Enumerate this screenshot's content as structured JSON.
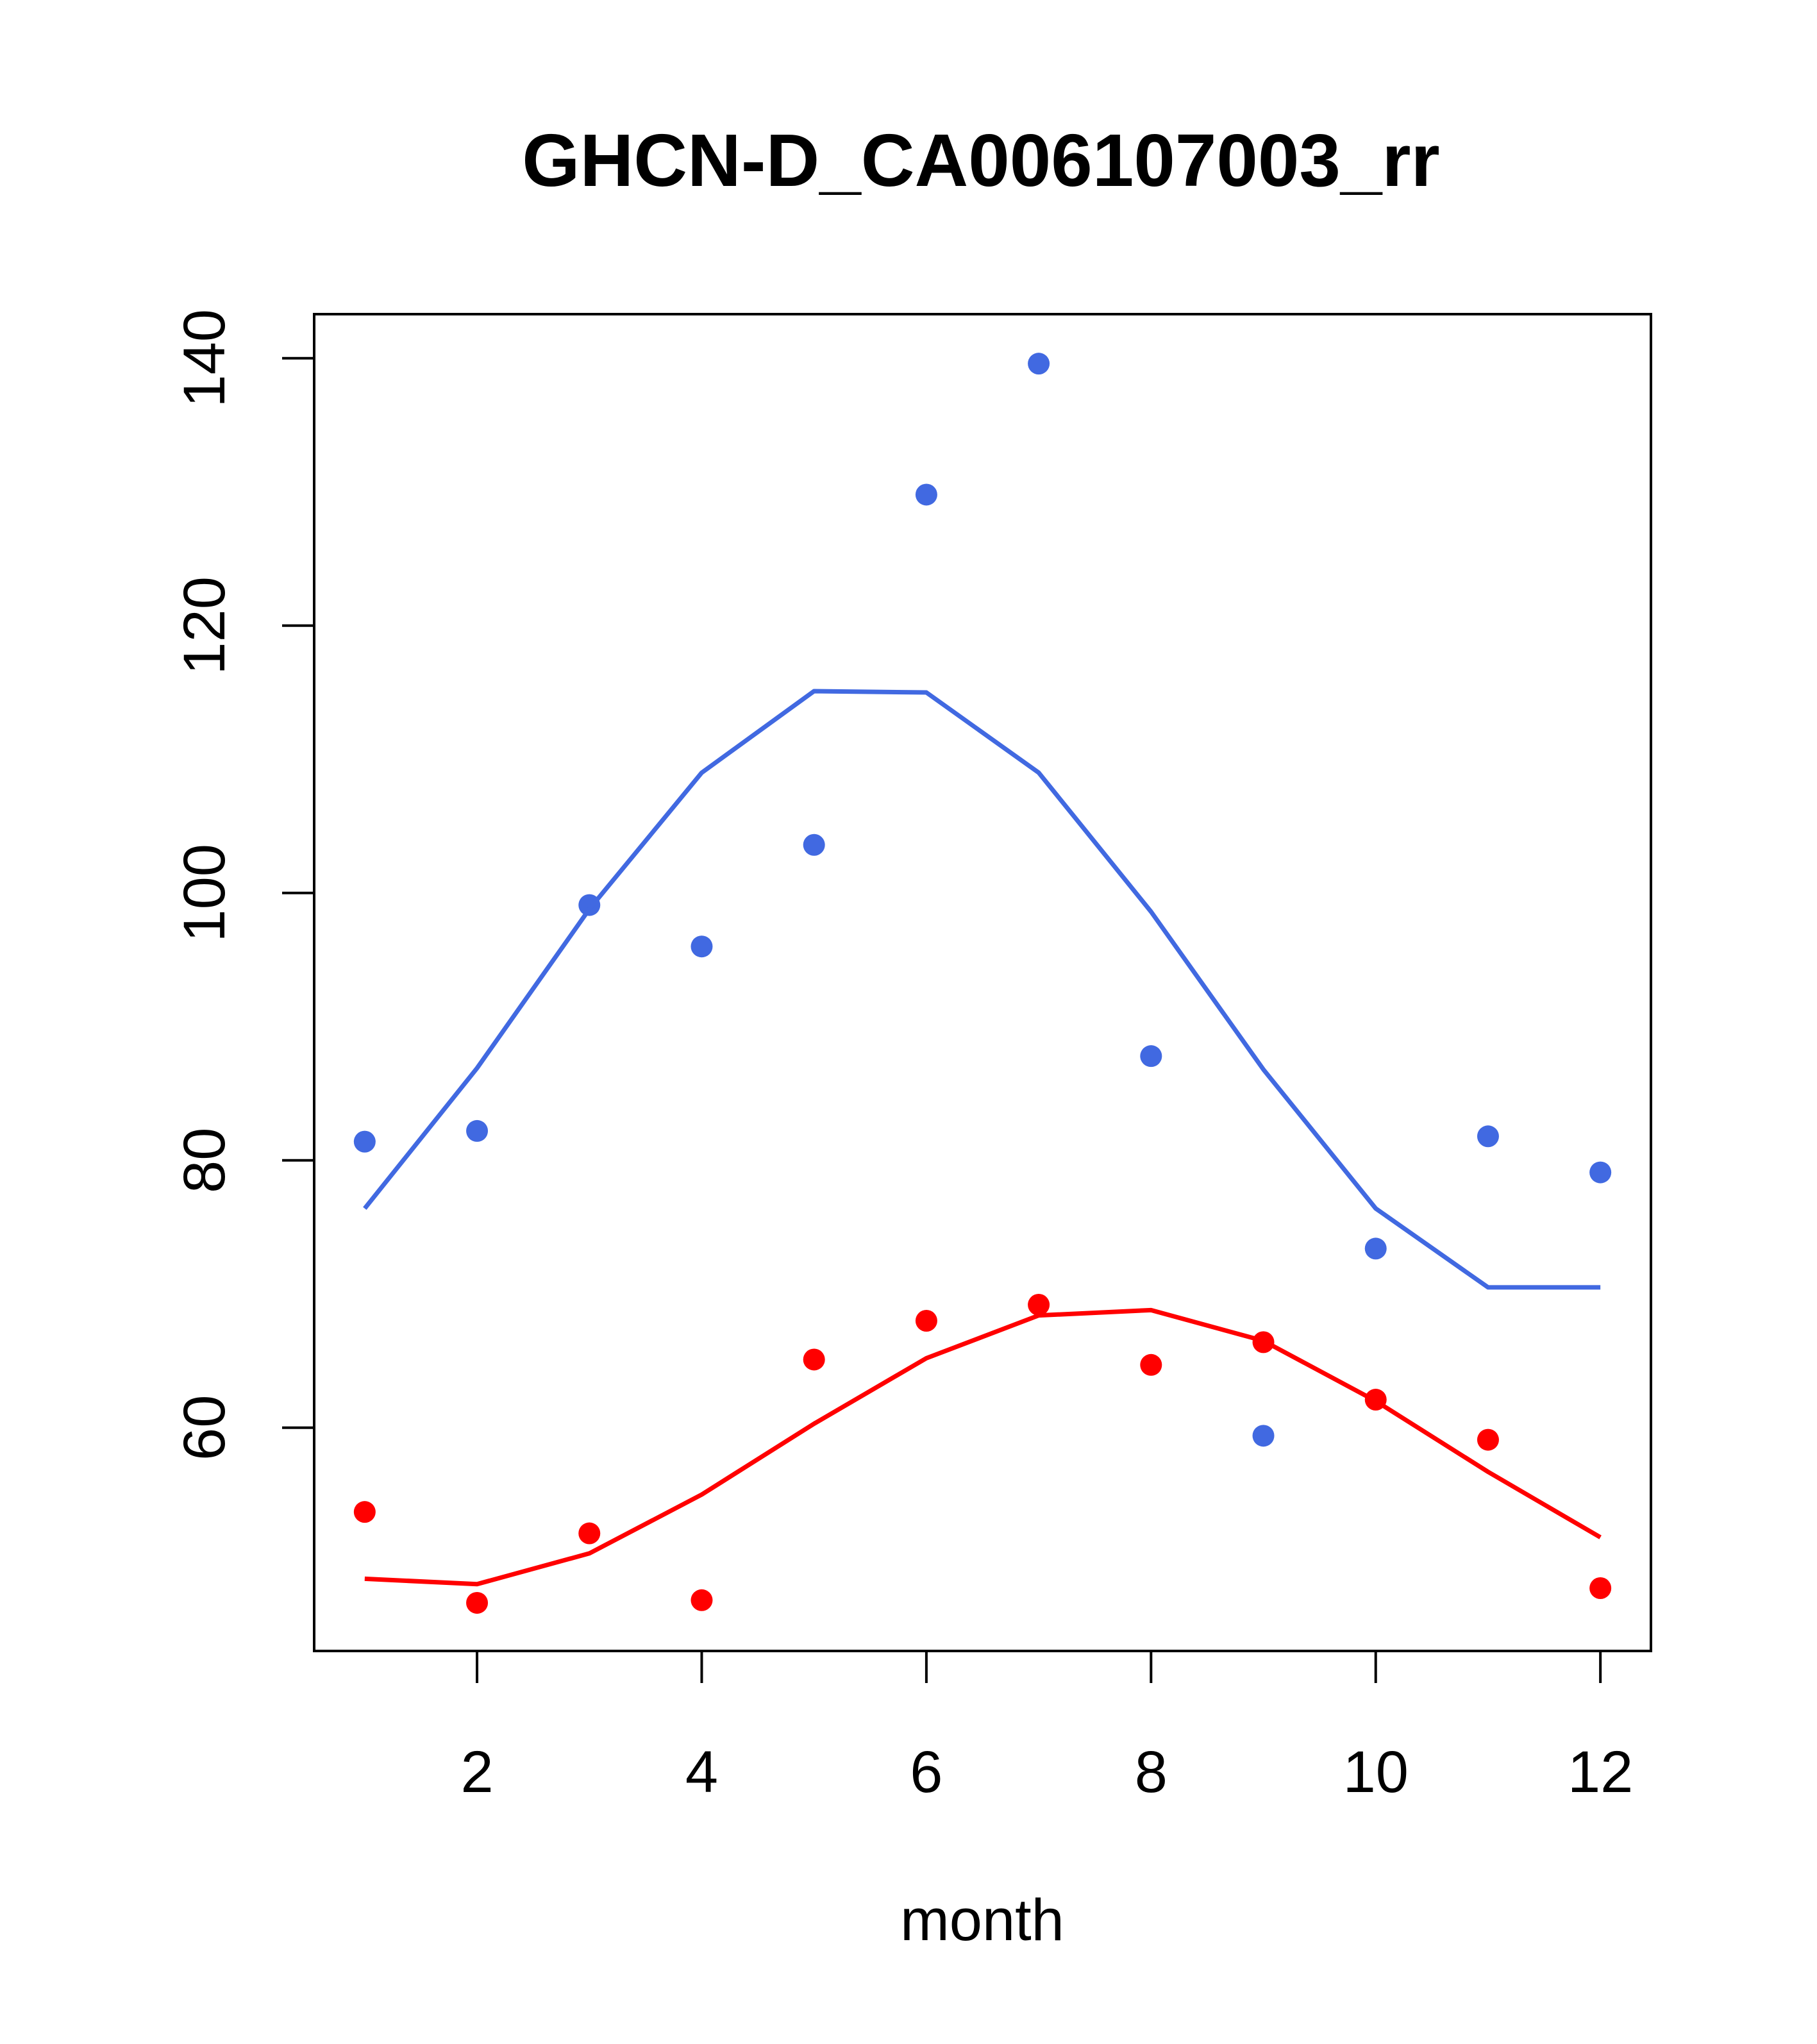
{
  "chart_data": {
    "type": "scatter",
    "title": "GHCN-D_CA006107003_rr",
    "xlabel": "month",
    "ylabel": "",
    "xlim": [
      0.55,
      12.45
    ],
    "ylim": [
      43.3,
      143.3
    ],
    "xticks": [
      2,
      4,
      6,
      8,
      10,
      12
    ],
    "yticks": [
      60,
      80,
      100,
      120,
      140
    ],
    "grid": false,
    "legend": "none",
    "series": [
      {
        "name": "blue points",
        "kind": "points",
        "color": "#4169E1",
        "x": [
          1,
          2,
          3,
          4,
          5,
          6,
          7,
          8,
          9,
          10,
          11,
          12
        ],
        "values": [
          81.4,
          82.2,
          99.1,
          96.0,
          103.6,
          129.8,
          139.6,
          87.8,
          59.4,
          73.4,
          81.8,
          79.1
        ]
      },
      {
        "name": "blue curve",
        "kind": "line",
        "color": "#4169E1",
        "x": [
          1,
          2,
          3,
          4,
          5,
          6,
          7,
          8,
          9,
          10,
          11,
          12
        ],
        "values": [
          76.4,
          86.9,
          98.8,
          109.0,
          115.1,
          115.0,
          109.0,
          98.6,
          86.8,
          76.4,
          70.5,
          70.5
        ]
      },
      {
        "name": "red points",
        "kind": "points",
        "color": "#FF0000",
        "x": [
          1,
          2,
          3,
          4,
          5,
          6,
          7,
          8,
          9,
          10,
          11,
          12
        ],
        "values": [
          53.7,
          46.9,
          52.1,
          47.1,
          65.1,
          68.0,
          69.2,
          64.7,
          66.4,
          62.1,
          59.1,
          48.0
        ]
      },
      {
        "name": "red curve",
        "kind": "line",
        "color": "#FF0000",
        "x": [
          1,
          2,
          3,
          4,
          5,
          6,
          7,
          8,
          9,
          10,
          11,
          12
        ],
        "values": [
          48.7,
          48.3,
          50.6,
          55.0,
          60.3,
          65.2,
          68.4,
          68.8,
          66.5,
          62.0,
          56.7,
          51.8
        ]
      }
    ]
  }
}
